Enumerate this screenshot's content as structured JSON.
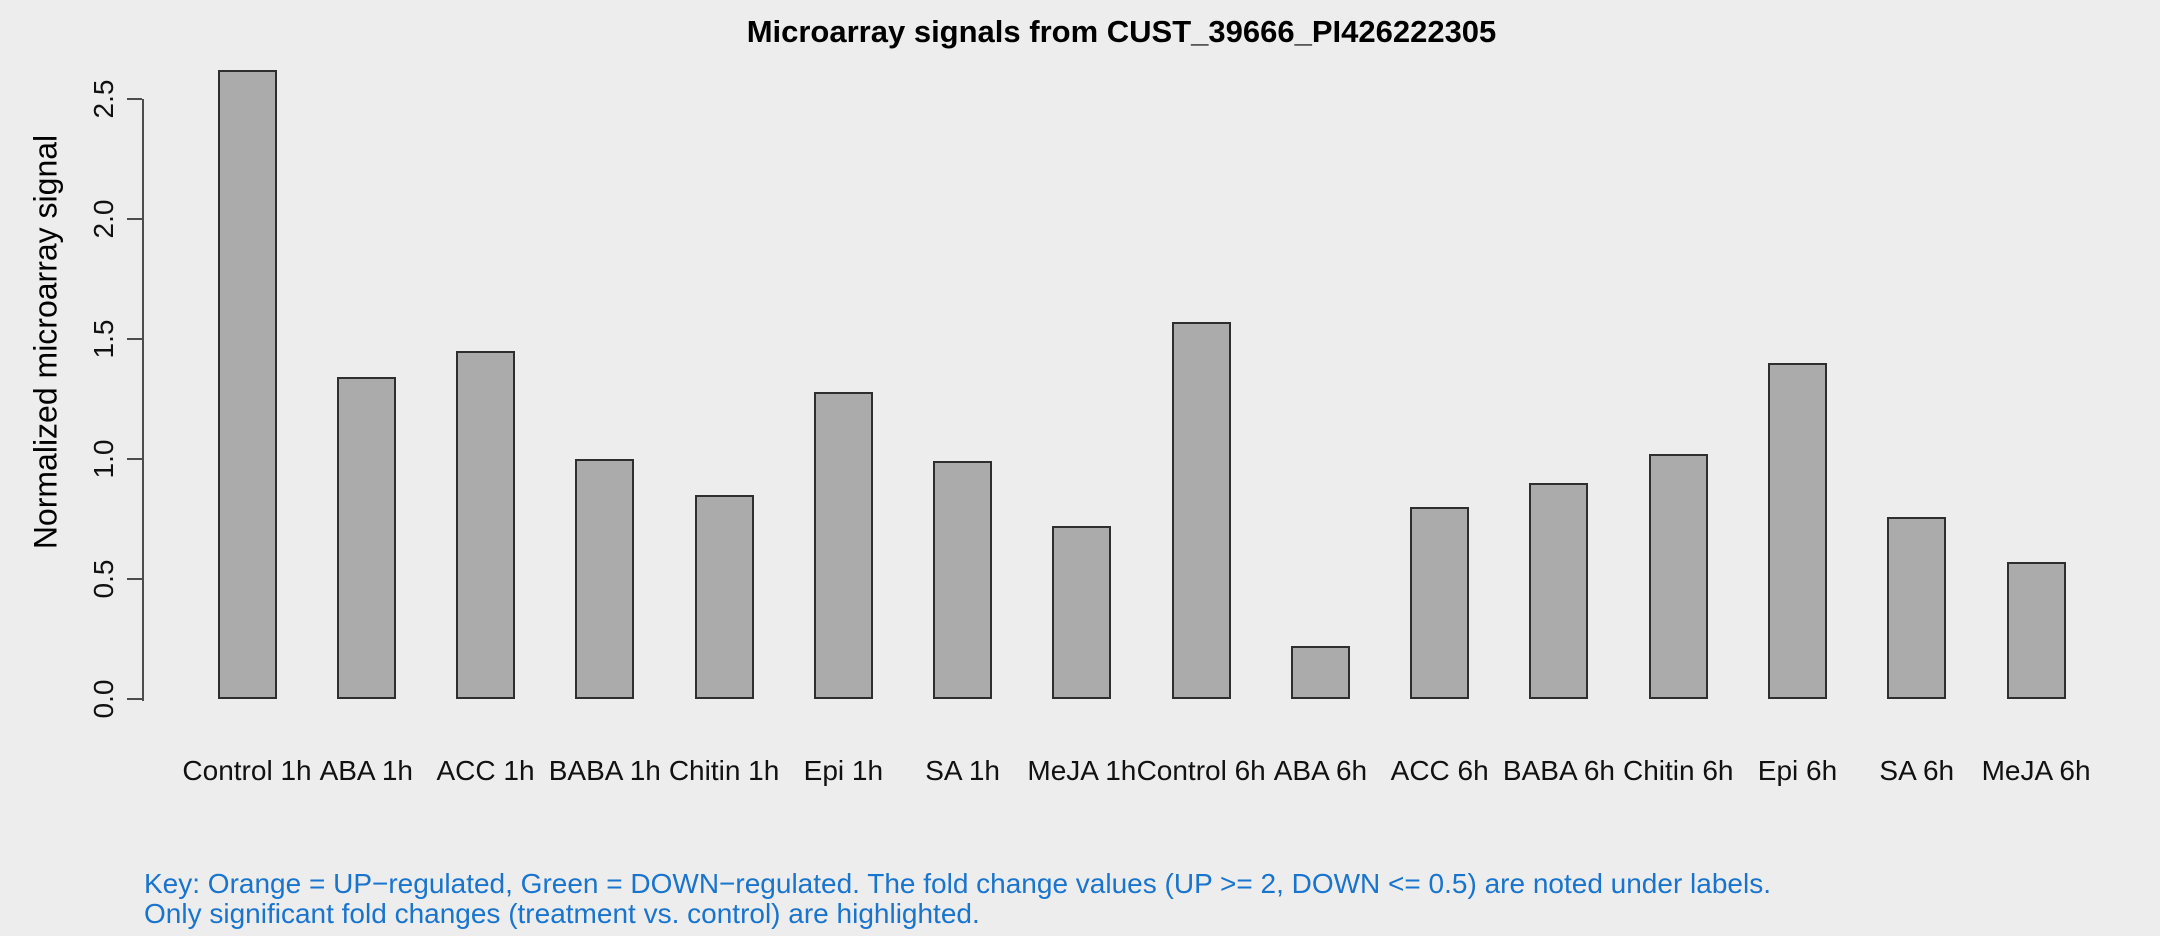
{
  "chart_data": {
    "type": "bar",
    "title": "Microarray signals from CUST_39666_PI426222305",
    "xlabel": "",
    "ylabel": "Normalized microarray signal",
    "categories": [
      "Control 1h",
      "ABA 1h",
      "ACC 1h",
      "BABA 1h",
      "Chitin 1h",
      "Epi 1h",
      "SA 1h",
      "MeJA 1h",
      "Control 6h",
      "ABA 6h",
      "ACC 6h",
      "BABA 6h",
      "Chitin 6h",
      "Epi 6h",
      "SA 6h",
      "MeJA 6h"
    ],
    "values": [
      2.62,
      1.34,
      1.45,
      1.0,
      0.85,
      1.28,
      0.99,
      0.72,
      1.57,
      0.22,
      0.8,
      0.9,
      1.02,
      1.4,
      0.76,
      0.57
    ],
    "ylim": [
      0,
      2.5
    ],
    "yticks": [
      "0.0",
      "0.5",
      "1.0",
      "1.5",
      "2.0",
      "2.5"
    ],
    "grid": false,
    "legend": "none",
    "bar_fill": "#ABABAB",
    "bar_border": "#2E2E2E"
  },
  "key": {
    "line1": "Key: Orange = UP−regulated, Green = DOWN−regulated. The fold change values (UP >= 2, DOWN <= 0.5) are noted under labels.",
    "line2": "Only significant fold changes (treatment vs. control) are highlighted.",
    "color": "#1874CD"
  },
  "colors": {
    "background": "#EDEDED",
    "axis": "#4D4D4D",
    "text": "#000000"
  }
}
